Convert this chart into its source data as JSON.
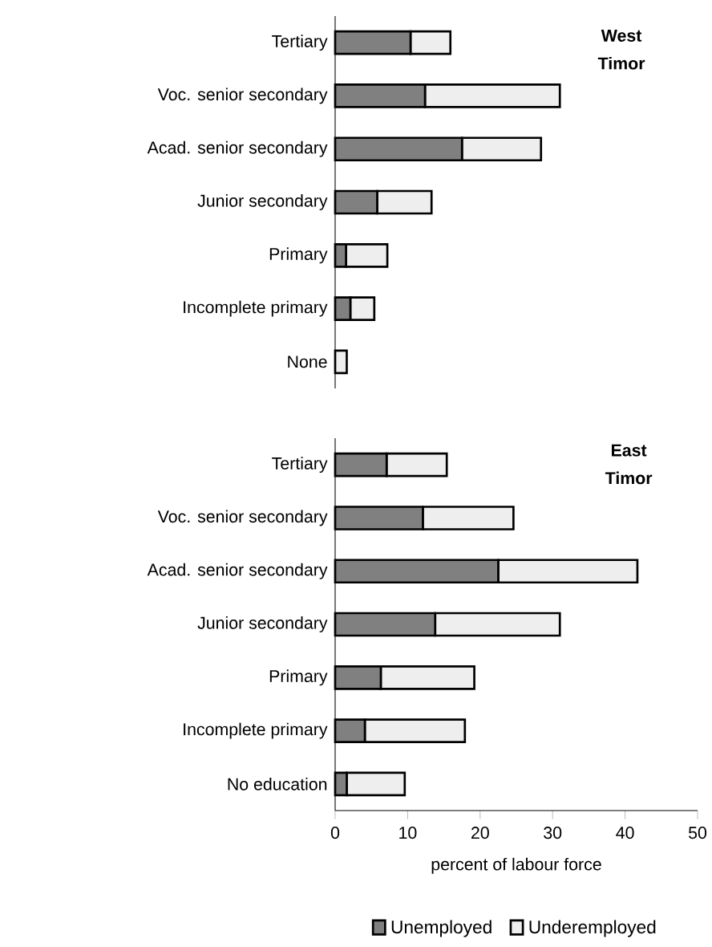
{
  "chart_data": [
    {
      "type": "bar",
      "orientation": "horizontal",
      "stacked": true,
      "categories": [
        "Tertiary",
        "Voc. senior secondary",
        "Acad. senior secondary",
        "Junior secondary",
        "Primary",
        "Incomplete primary",
        "None"
      ],
      "series": [
        {
          "color": "#808080",
          "values": [
            10.4,
            12.4,
            17.5,
            5.8,
            1.5,
            2.1,
            0
          ]
        },
        {
          "color": "#eeeeee",
          "values": [
            5.5,
            18.6,
            10.9,
            7.5,
            5.7,
            3.3,
            1.6
          ]
        }
      ],
      "xlim": [
        0,
        50
      ],
      "tick_labels": "y",
      "annotations": [
        "West Timor"
      ]
    },
    {
      "type": "bar",
      "orientation": "horizontal",
      "stacked": true,
      "categories": [
        "Tertiary",
        "Voc. senior secondary",
        "Acad. senior secondary",
        "Junior secondary",
        "Primary",
        "Incomplete primary",
        "No education"
      ],
      "series": [
        {
          "name": "Unemployed",
          "color": "#808080",
          "values": [
            7.1,
            12.1,
            22.5,
            13.8,
            6.3,
            4.1,
            1.6
          ]
        },
        {
          "name": "Underemployed",
          "color": "#eeeeee",
          "values": [
            8.3,
            12.5,
            19.2,
            17.2,
            12.9,
            13.8,
            8.0
          ]
        }
      ],
      "xlim": [
        0,
        50
      ],
      "xticks": [
        0,
        10,
        20,
        30,
        40,
        50
      ],
      "xlabel": "percent of labour force",
      "legend": "bottom",
      "annotations": [
        "East Timor"
      ]
    }
  ]
}
